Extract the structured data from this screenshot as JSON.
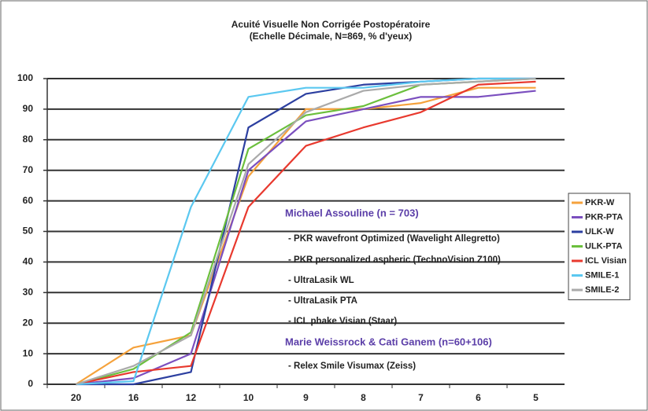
{
  "chart_data": {
    "type": "line",
    "title": "Acuité Visuelle Non Corrigée Postopératoire",
    "subtitle": "(Echelle Décimale, N=869, % d'yeux)",
    "categories": [
      "20",
      "16",
      "12",
      "10",
      "9",
      "8",
      "7",
      "6",
      "5"
    ],
    "series": [
      {
        "name": "PKR-W",
        "color": "#f5a23c",
        "values": [
          0,
          12,
          16,
          68,
          90,
          90,
          92,
          97,
          97
        ]
      },
      {
        "name": "PKR-PTA",
        "color": "#7b4fbf",
        "values": [
          0,
          2,
          10,
          70,
          86,
          90,
          94,
          94,
          96
        ]
      },
      {
        "name": "ULK-W",
        "color": "#2c3fa0",
        "values": [
          0,
          0,
          4,
          84,
          95,
          98,
          99,
          100,
          100
        ]
      },
      {
        "name": "ULK-PTA",
        "color": "#6bbf3c",
        "values": [
          0,
          5,
          17,
          77,
          88,
          91,
          98,
          99,
          100
        ]
      },
      {
        "name": "ICL Visian",
        "color": "#e8392e",
        "values": [
          0,
          4,
          6,
          58,
          78,
          84,
          89,
          98,
          99
        ]
      },
      {
        "name": "SMILE-1",
        "color": "#5bc8f0",
        "values": [
          0,
          1,
          58,
          94,
          97,
          97,
          99,
          100,
          100
        ]
      },
      {
        "name": "SMILE-2",
        "color": "#aaaaaa",
        "values": [
          0,
          6,
          16,
          72,
          89,
          96,
          98,
          99,
          100
        ]
      }
    ],
    "ylim": [
      0,
      100
    ],
    "yticks": [
      0,
      10,
      20,
      30,
      40,
      50,
      60,
      70,
      80,
      90,
      100
    ],
    "grid": true,
    "legend": "right",
    "annotations": [
      "Michael Assouline  (n = 703)",
      "- PKR wavefront Optimized (Wavelight Allegretto)",
      "- PKR personalized aspheric (TechnoVision Z100)",
      "- UltraLasik WL",
      "- UltraLasik PTA",
      "- ICL phake Visian (Staar)",
      "Marie Weissrock & Cati Ganem (n=60+106)",
      "- Relex Smile Visumax (Zeiss)"
    ]
  }
}
